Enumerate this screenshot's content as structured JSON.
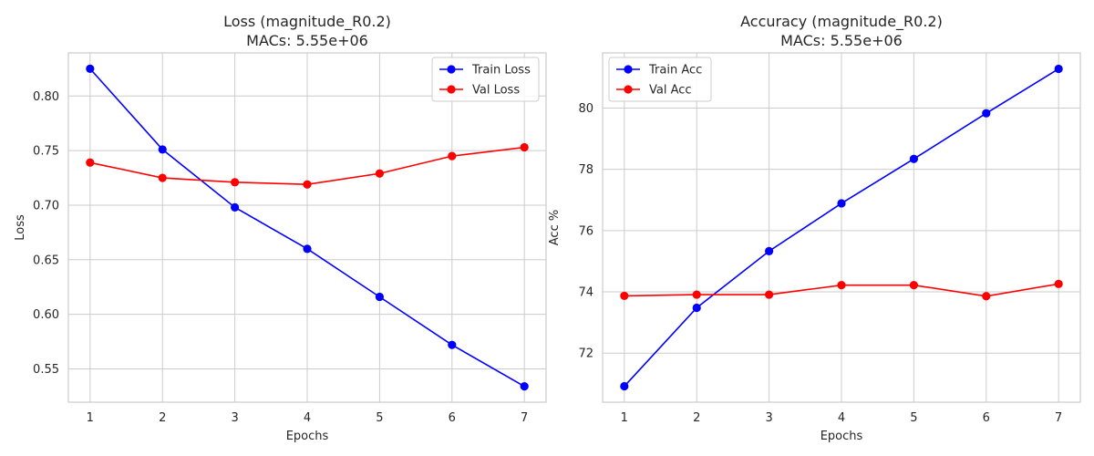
{
  "chart_data": [
    {
      "type": "line",
      "title": "Loss (magnitude_R0.2)",
      "subtitle": "MACs: 5.55e+06",
      "xlabel": "Epochs",
      "ylabel": "Loss",
      "x": [
        1,
        2,
        3,
        4,
        5,
        6,
        7
      ],
      "xlim": [
        0.7,
        7.3
      ],
      "ylim": [
        0.5195,
        0.8395
      ],
      "yticks": [
        0.55,
        0.6,
        0.65,
        0.7,
        0.75,
        0.8
      ],
      "ytick_labels": [
        "0.55",
        "0.60",
        "0.65",
        "0.70",
        "0.75",
        "0.80"
      ],
      "grid": true,
      "legend_position": "top-right",
      "series": [
        {
          "name": "Train Loss",
          "color": "#0000ff",
          "values": [
            0.825,
            0.751,
            0.698,
            0.66,
            0.616,
            0.572,
            0.534
          ]
        },
        {
          "name": "Val Loss",
          "color": "#ff0000",
          "values": [
            0.739,
            0.725,
            0.721,
            0.719,
            0.729,
            0.745,
            0.753
          ]
        }
      ]
    },
    {
      "type": "line",
      "title": "Accuracy (magnitude_R0.2)",
      "subtitle": "MACs: 5.55e+06",
      "xlabel": "Epochs",
      "ylabel": "Acc %",
      "x": [
        1,
        2,
        3,
        4,
        5,
        6,
        7
      ],
      "xlim": [
        0.7,
        7.3
      ],
      "ylim": [
        70.4,
        81.8
      ],
      "yticks": [
        72,
        74,
        76,
        78,
        80
      ],
      "ytick_labels": [
        "72",
        "74",
        "76",
        "78",
        "80"
      ],
      "grid": true,
      "legend_position": "top-left",
      "series": [
        {
          "name": "Train Acc",
          "color": "#0000ff",
          "values": [
            70.92,
            73.48,
            75.33,
            76.89,
            78.34,
            79.83,
            81.28
          ]
        },
        {
          "name": "Val Acc",
          "color": "#ff0000",
          "values": [
            73.87,
            73.91,
            73.91,
            74.22,
            74.22,
            73.86,
            74.26
          ]
        }
      ]
    }
  ]
}
